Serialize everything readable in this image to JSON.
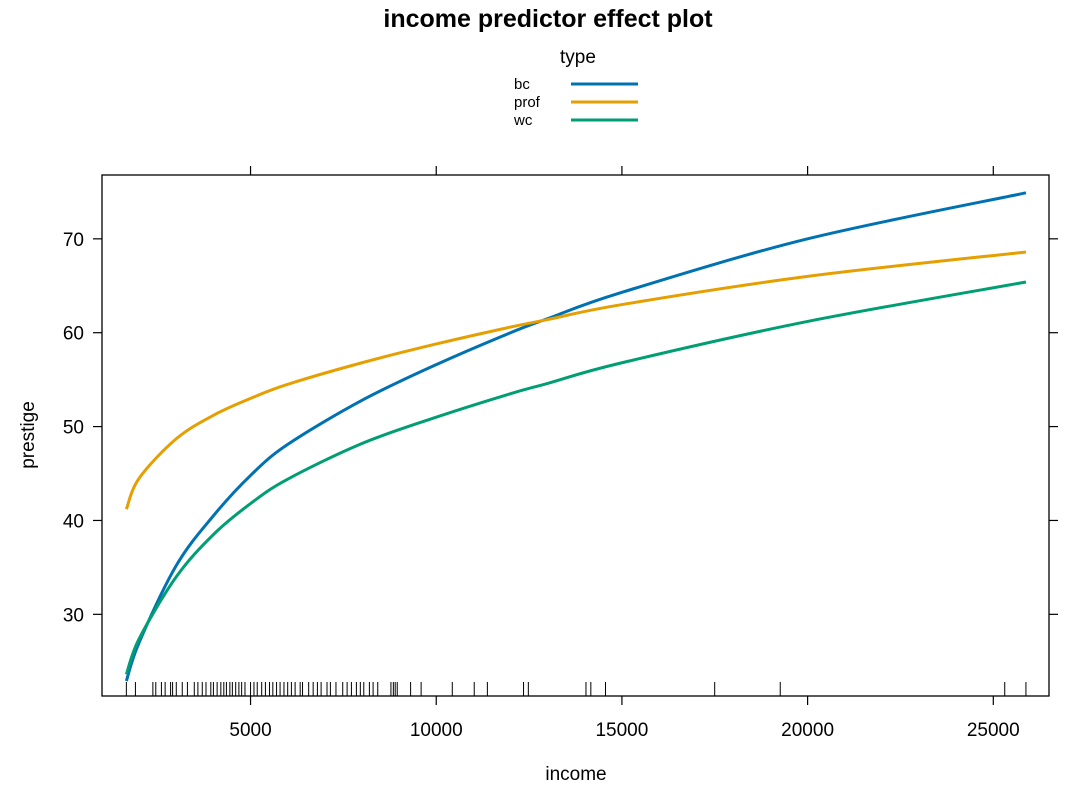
{
  "chart_data": {
    "type": "line",
    "title": "income predictor effect plot",
    "xlabel": "income",
    "ylabel": "prestige",
    "xlim": [
      1000,
      26500
    ],
    "ylim": [
      21.3,
      76.8
    ],
    "x_ticks": [
      5000,
      10000,
      15000,
      20000,
      25000
    ],
    "x_tick_labels": [
      "5000",
      "10000",
      "15000",
      "20000",
      "25000"
    ],
    "y_ticks": [
      30,
      40,
      50,
      60,
      70
    ],
    "y_tick_labels": [
      "30",
      "40",
      "50",
      "60",
      "70"
    ],
    "legend": {
      "title": "type",
      "placement": "top"
    },
    "grid": false,
    "x": [
      1656,
      2000,
      3000,
      4000,
      5000,
      6000,
      8000,
      10000,
      12000,
      13000,
      15000,
      20000,
      25879
    ],
    "series": [
      {
        "name": "bc",
        "color": "#0072B2",
        "values": [
          22.9,
          27.0,
          35.2,
          40.5,
          44.8,
          48.1,
          52.8,
          56.6,
          60.0,
          61.5,
          64.3,
          70.0,
          74.9
        ]
      },
      {
        "name": "prof",
        "color": "#E69F00",
        "values": [
          41.2,
          44.5,
          48.7,
          51.2,
          53.0,
          54.5,
          56.8,
          58.8,
          60.6,
          61.4,
          63.0,
          66.0,
          68.6
        ]
      },
      {
        "name": "wc",
        "color": "#009E73",
        "values": [
          23.6,
          27.4,
          34.0,
          38.5,
          41.8,
          44.4,
          48.2,
          51.0,
          53.5,
          54.6,
          56.8,
          61.2,
          65.4
        ]
      }
    ],
    "rug_x": [
      1656,
      1900,
      2370,
      2448,
      2600,
      2700,
      2847,
      2901,
      3000,
      3161,
      3300,
      3485,
      3582,
      3700,
      3800,
      3930,
      4000,
      4100,
      4200,
      4280,
      4350,
      4443,
      4510,
      4600,
      4686,
      4760,
      4850,
      5000,
      5092,
      5180,
      5300,
      5400,
      5511,
      5600,
      5700,
      5795,
      5900,
      6000,
      6100,
      6200,
      6336,
      6400,
      6565,
      6686,
      6800,
      6900,
      7059,
      7150,
      7300,
      7482,
      7600,
      7716,
      7850,
      7956,
      8049,
      8200,
      8300,
      8425,
      8780,
      8845,
      8895,
      8950,
      9310,
      9593,
      10432,
      11023,
      11377,
      12351,
      12480,
      14032,
      14163,
      14558,
      17498,
      19263,
      25308,
      25879
    ]
  }
}
